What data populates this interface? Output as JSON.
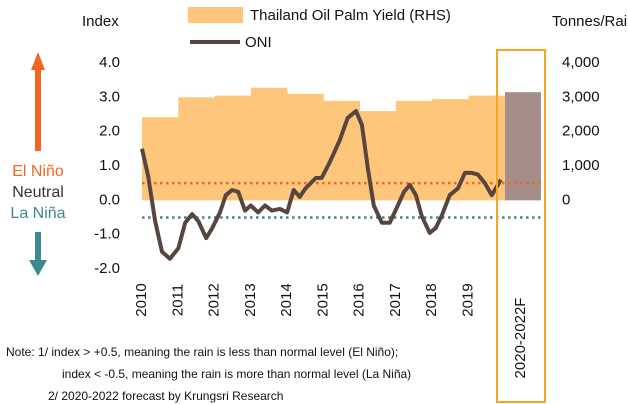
{
  "chart_data": {
    "type": "dual-axis",
    "ylabel": "Index",
    "y2label": "Tonnes/Rai",
    "xlim": [
      2010,
      2021.3
    ],
    "xticks": [
      2010,
      2011,
      2012,
      2013,
      2014,
      2015,
      2016,
      2017,
      2018,
      2019
    ],
    "ylim": [
      -2,
      4
    ],
    "yticks": [
      {
        "value": -2,
        "label": "-2.0"
      },
      {
        "value": -1,
        "label": "-1.0"
      },
      {
        "value": 0,
        "label": "0.0"
      },
      {
        "value": 1,
        "label": "1.0"
      },
      {
        "value": 2,
        "label": "2.0"
      },
      {
        "value": 3,
        "label": "3.0"
      },
      {
        "value": 4,
        "label": "4.0"
      }
    ],
    "y2lim": [
      -2000,
      4000
    ],
    "y2ticks": [
      0,
      {
        "value": 1000,
        "label": "1,000"
      },
      {
        "value": 2000,
        "label": "2,000"
      },
      {
        "value": 3000,
        "label": "3,000"
      },
      {
        "value": 4000,
        "label": "4,000"
      }
    ],
    "series": [
      {
        "name": "Thailand Oil Palm Yield (RHS)",
        "type": "area",
        "axis": "y2",
        "color": "#fdc67a",
        "x": [
          2010,
          2011,
          2012,
          2013,
          2014,
          2015,
          2016,
          2017,
          2018,
          2019
        ],
        "values": [
          2420,
          3000,
          3050,
          3280,
          3100,
          2900,
          2600,
          2900,
          2950,
          3050
        ]
      },
      {
        "name": "ONI",
        "type": "line",
        "color": "#574640",
        "x": [
          2010.0,
          2010.17,
          2010.36,
          2010.55,
          2010.77,
          2011.0,
          2011.19,
          2011.38,
          2011.55,
          2011.77,
          2011.94,
          2012.15,
          2012.31,
          2012.48,
          2012.65,
          2012.84,
          2013.0,
          2013.2,
          2013.39,
          2013.58,
          2013.8,
          2014.0,
          2014.18,
          2014.35,
          2014.51,
          2014.79,
          2014.95,
          2015.17,
          2015.45,
          2015.67,
          2015.9,
          2016.06,
          2016.23,
          2016.39,
          2016.61,
          2016.83,
          2017.05,
          2017.22,
          2017.38,
          2017.55,
          2017.71,
          2017.93,
          2018.1,
          2018.26,
          2018.48,
          2018.71,
          2018.9,
          2019.09,
          2019.26,
          2019.45,
          2019.64,
          2019.81,
          2019.89
        ],
        "values": [
          1.5,
          0.7,
          -0.6,
          -1.5,
          -1.7,
          -1.4,
          -0.65,
          -0.4,
          -0.6,
          -1.1,
          -0.8,
          -0.35,
          0.15,
          0.3,
          0.25,
          -0.3,
          -0.15,
          -0.35,
          -0.15,
          -0.3,
          -0.25,
          -0.35,
          0.3,
          0.1,
          0.35,
          0.65,
          0.65,
          1.1,
          1.75,
          2.4,
          2.6,
          2.2,
          0.9,
          -0.15,
          -0.65,
          -0.65,
          -0.15,
          0.25,
          0.45,
          0.15,
          -0.45,
          -0.95,
          -0.8,
          -0.45,
          0.15,
          0.35,
          0.8,
          0.8,
          0.75,
          0.5,
          0.15,
          0.45,
          0.6
        ]
      }
    ],
    "forecast": {
      "label": "2020-2022F",
      "value": 3150,
      "color": "#a58d8a",
      "box_color": "#f5a623"
    },
    "thresholds": [
      {
        "value": 0.5,
        "color": "#f26522"
      },
      {
        "value": -0.5,
        "color": "#3b8a8f"
      }
    ],
    "zones": [
      {
        "label": "El Niño",
        "color": "#f26522"
      },
      {
        "label": "Neutral",
        "color": "#333333"
      },
      {
        "label": "La Niña",
        "color": "#3b8a8f"
      }
    ],
    "notes": [
      "Note: 1/ index >  +0.5, meaning the rain is less than normal level (El Niño);",
      "index < -0.5, meaning the rain is more than normal level (La Niña)",
      "2/ 2020-2022 forecast by Krungsri Research"
    ]
  }
}
